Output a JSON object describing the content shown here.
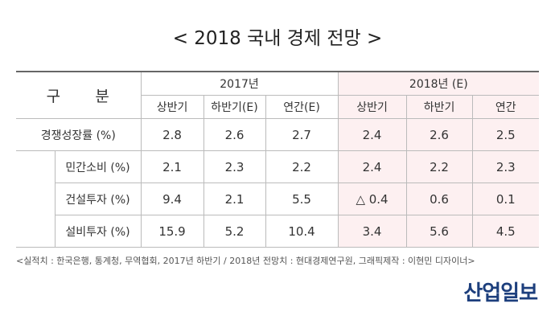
{
  "header": {
    "title": "< 2018 국내 경제 전망 >"
  },
  "table": {
    "corner": "구      분",
    "groups": [
      "2017년",
      "2018년 (E)"
    ],
    "columns": [
      "상반기",
      "하반기(E)",
      "연간(E)",
      "상반기",
      "하반기",
      "연간"
    ],
    "rows": [
      [
        "경쟁성장률 (%)",
        "2.8",
        "2.6",
        "2.7",
        "2.4",
        "2.6",
        "2.5"
      ],
      [
        "민간소비 (%)",
        "2.1",
        "2.3",
        "2.2",
        "2.4",
        "2.2",
        "2.3"
      ],
      [
        "건설투자 (%)",
        "9.4",
        "2.1",
        "5.5",
        "△ 0.4",
        "0.6",
        "0.1"
      ],
      [
        "설비투자 (%)",
        "15.9",
        "5.2",
        "10.4",
        "3.4",
        "5.6",
        "4.5"
      ]
    ]
  },
  "footer": {
    "source": "<실적치 : 한국은행, 통계청, 무역협회, 2017년 하반기 / 2018년 전망치 : 현대경제연구원, 그래픽제작 : 이현민 디자이너>",
    "logo": "산업일보"
  }
}
